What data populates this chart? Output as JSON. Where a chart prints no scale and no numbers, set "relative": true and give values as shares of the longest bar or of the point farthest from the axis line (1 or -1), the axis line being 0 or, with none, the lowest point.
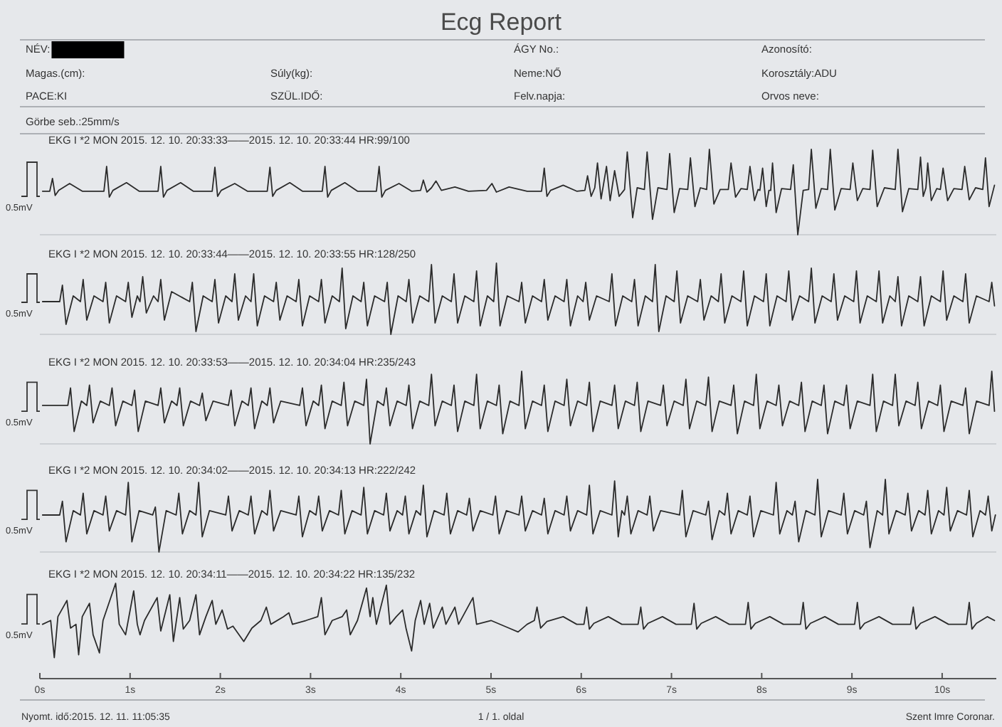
{
  "chart_data": [
    {
      "type": "other",
      "title": "Ecg Report",
      "annotations": [
        "NÉV:",
        "ÁGY No.:",
        "Azonosító:",
        "Magas.(cm):",
        "Súly(kg):",
        "Neme:NŐ",
        "Korosztály:ADU",
        "PACE:KI",
        "SZÜL.IDŐ:",
        "Felv.napja:",
        "Orvos neve:",
        "Görbe seb.:25mm/s"
      ]
    },
    {
      "type": "line",
      "title": "EKG I *2 MON 2015. 12. 10. 20:33:33——2015. 12. 10. 20:33:44 HR:99/100",
      "relative": true,
      "xlim": [
        0,
        10.6
      ],
      "tick_labels": false,
      "annotations": [
        "0.5mV"
      ],
      "color": "#2b2b2b",
      "x": [
        0.03,
        0.11,
        0.14,
        0.17,
        0.21,
        0.33,
        0.47,
        0.71,
        0.74,
        0.77,
        0.81,
        0.96,
        1.1,
        1.31,
        1.34,
        1.37,
        1.41,
        1.56,
        1.7,
        1.91,
        1.94,
        1.97,
        2.01,
        2.16,
        2.3,
        2.52,
        2.55,
        2.58,
        2.62,
        2.77,
        2.91,
        3.13,
        3.16,
        3.19,
        3.23,
        3.38,
        3.52,
        3.73,
        3.76,
        3.79,
        3.83,
        3.98,
        4.12,
        4.22,
        4.25,
        4.29,
        4.34,
        4.39,
        4.45,
        4.6,
        4.75,
        4.95,
        5.01,
        5.06,
        5.2,
        5.4,
        5.56,
        5.59,
        5.62,
        5.66,
        5.8,
        5.95,
        6.04,
        6.07,
        6.11,
        6.15,
        6.18,
        6.22,
        6.28,
        6.32,
        6.37,
        6.42,
        6.48,
        6.51,
        6.57,
        6.62,
        6.7,
        6.73,
        6.79,
        6.85,
        6.95,
        6.98,
        7.03,
        7.09,
        7.18,
        7.21,
        7.26,
        7.32,
        7.39,
        7.42,
        7.47,
        7.54,
        7.63,
        7.66,
        7.71,
        7.77,
        7.84,
        7.87,
        7.92,
        7.96,
        7.98,
        8.01,
        8.05,
        8.08,
        8.1,
        8.12,
        8.16,
        8.22,
        8.32,
        8.35,
        8.4,
        8.46,
        8.52,
        8.55,
        8.6,
        8.66,
        8.73,
        8.76,
        8.81,
        8.88,
        8.98,
        9.01,
        9.06,
        9.12,
        9.2,
        9.23,
        9.28,
        9.36,
        9.48,
        9.51,
        9.56,
        9.63,
        9.73,
        9.76,
        9.79,
        9.82,
        9.84,
        9.88,
        9.94,
        9.98,
        10.01,
        10.06,
        10.13,
        10.22,
        10.25,
        10.3,
        10.37,
        10.45,
        10.48,
        10.52,
        10.58
      ],
      "values": [
        0.51,
        0.51,
        0.66,
        0.46,
        0.52,
        0.6,
        0.51,
        0.51,
        0.8,
        0.44,
        0.52,
        0.61,
        0.51,
        0.51,
        0.8,
        0.44,
        0.52,
        0.61,
        0.51,
        0.51,
        0.79,
        0.45,
        0.52,
        0.6,
        0.51,
        0.51,
        0.79,
        0.45,
        0.52,
        0.61,
        0.51,
        0.51,
        0.8,
        0.44,
        0.52,
        0.61,
        0.51,
        0.51,
        0.8,
        0.44,
        0.52,
        0.6,
        0.51,
        0.52,
        0.64,
        0.5,
        0.55,
        0.63,
        0.52,
        0.56,
        0.51,
        0.52,
        0.6,
        0.5,
        0.56,
        0.51,
        0.51,
        0.78,
        0.45,
        0.52,
        0.58,
        0.51,
        0.52,
        0.69,
        0.45,
        0.55,
        0.84,
        0.42,
        0.8,
        0.4,
        0.75,
        0.45,
        0.53,
        0.97,
        0.2,
        0.55,
        0.53,
        0.97,
        0.18,
        0.55,
        0.53,
        0.95,
        0.26,
        0.54,
        0.53,
        0.9,
        0.33,
        0.55,
        0.53,
        1.0,
        0.36,
        0.53,
        0.53,
        0.84,
        0.44,
        0.54,
        0.53,
        0.8,
        0.4,
        0.53,
        0.52,
        0.78,
        0.33,
        0.52,
        0.52,
        0.84,
        0.26,
        0.54,
        0.53,
        0.82,
        0.0,
        0.52,
        0.53,
        1.0,
        0.31,
        0.54,
        0.53,
        1.0,
        0.29,
        0.54,
        0.53,
        0.84,
        0.4,
        0.54,
        0.53,
        0.99,
        0.33,
        0.55,
        0.53,
        1.0,
        0.27,
        0.54,
        0.53,
        0.91,
        0.45,
        0.55,
        0.84,
        0.4,
        0.54,
        0.53,
        0.78,
        0.4,
        0.54,
        0.53,
        0.8,
        0.41,
        0.55,
        0.53,
        0.9,
        0.33,
        0.58
      ]
    },
    {
      "type": "line",
      "title": "EKG I *2 MON 2015. 12. 10. 20:33:44——2015. 12. 10. 20:33:55 HR:128/250",
      "relative": true,
      "xlim": [
        0,
        10.6
      ],
      "tick_labels": false,
      "annotations": [
        "0.5mV"
      ],
      "color": "#2b2b2b",
      "x": [
        0.03,
        0.22,
        0.25,
        0.29,
        0.37,
        0.45,
        0.48,
        0.52,
        0.6,
        0.7,
        0.73,
        0.77,
        0.85,
        0.95,
        0.98,
        1.02,
        1.08,
        1.11,
        1.14,
        1.18,
        1.26,
        1.31,
        1.34,
        1.38,
        1.46,
        1.66,
        1.69,
        1.73,
        1.81,
        1.91,
        1.94,
        1.98,
        2.06,
        2.13,
        2.16,
        2.2,
        2.28,
        2.34,
        2.37,
        2.41,
        2.49,
        2.59,
        2.62,
        2.66,
        2.74,
        2.84,
        2.87,
        2.91,
        2.99,
        3.09,
        3.12,
        3.16,
        3.24,
        3.32,
        3.35,
        3.39,
        3.47,
        3.56,
        3.59,
        3.63,
        3.71,
        3.82,
        3.85,
        3.89,
        3.97,
        4.06,
        4.09,
        4.13,
        4.21,
        4.31,
        4.34,
        4.38,
        4.46,
        4.56,
        4.59,
        4.63,
        4.71,
        4.81,
        4.84,
        4.88,
        4.96,
        5.03,
        5.06,
        5.1,
        5.18,
        5.31,
        5.34,
        5.38,
        5.46,
        5.56,
        5.59,
        5.63,
        5.71,
        5.81,
        5.84,
        5.88,
        5.96,
        6.02,
        6.05,
        6.09,
        6.17,
        6.31,
        6.34,
        6.38,
        6.46,
        6.56,
        6.59,
        6.63,
        6.71,
        6.79,
        6.82,
        6.86,
        6.94,
        7.03,
        7.06,
        7.1,
        7.18,
        7.29,
        7.32,
        7.36,
        7.44,
        7.52,
        7.55,
        7.59,
        7.67,
        7.77,
        7.8,
        7.84,
        7.92,
        8.02,
        8.05,
        8.09,
        8.17,
        8.27,
        8.3,
        8.34,
        8.42,
        8.52,
        8.55,
        8.59,
        8.67,
        8.77,
        8.8,
        8.84,
        8.92,
        9.02,
        9.05,
        9.09,
        9.17,
        9.27,
        9.3,
        9.34,
        9.42,
        9.48,
        9.51,
        9.55,
        9.63,
        9.73,
        9.76,
        9.8,
        9.88,
        9.98,
        10.01,
        10.05,
        10.13,
        10.23,
        10.26,
        10.3,
        10.38,
        10.52,
        10.55,
        10.58
      ],
      "values": [
        0.46,
        0.46,
        0.69,
        0.14,
        0.54,
        0.46,
        0.77,
        0.2,
        0.54,
        0.46,
        0.73,
        0.16,
        0.54,
        0.46,
        0.73,
        0.24,
        0.54,
        0.46,
        0.81,
        0.3,
        0.54,
        0.46,
        0.77,
        0.2,
        0.6,
        0.46,
        0.73,
        0.04,
        0.54,
        0.46,
        0.77,
        0.16,
        0.54,
        0.46,
        0.85,
        0.2,
        0.54,
        0.46,
        0.85,
        0.12,
        0.54,
        0.46,
        0.73,
        0.2,
        0.54,
        0.46,
        0.77,
        0.12,
        0.54,
        0.46,
        0.77,
        0.16,
        0.54,
        0.46,
        0.93,
        0.08,
        0.54,
        0.46,
        0.73,
        0.12,
        0.54,
        0.46,
        0.73,
        0.0,
        0.54,
        0.46,
        0.77,
        0.16,
        0.54,
        0.46,
        0.98,
        0.16,
        0.54,
        0.46,
        0.85,
        0.16,
        0.54,
        0.46,
        0.89,
        0.12,
        0.54,
        0.46,
        1.0,
        0.12,
        0.54,
        0.46,
        0.73,
        0.16,
        0.54,
        0.46,
        0.77,
        0.2,
        0.54,
        0.46,
        0.77,
        0.12,
        0.54,
        0.46,
        0.73,
        0.2,
        0.54,
        0.46,
        0.85,
        0.12,
        0.54,
        0.46,
        0.77,
        0.12,
        0.54,
        0.46,
        0.98,
        0.04,
        0.54,
        0.46,
        0.89,
        0.16,
        0.54,
        0.46,
        0.77,
        0.2,
        0.54,
        0.46,
        0.85,
        0.16,
        0.54,
        0.46,
        0.89,
        0.12,
        0.54,
        0.46,
        0.85,
        0.12,
        0.54,
        0.46,
        0.89,
        0.2,
        0.54,
        0.46,
        0.93,
        0.16,
        0.54,
        0.46,
        0.85,
        0.2,
        0.54,
        0.46,
        0.89,
        0.16,
        0.54,
        0.46,
        0.89,
        0.16,
        0.54,
        0.46,
        0.81,
        0.12,
        0.54,
        0.46,
        0.81,
        0.12,
        0.54,
        0.46,
        0.89,
        0.2,
        0.54,
        0.46,
        0.85,
        0.16,
        0.54,
        0.46,
        0.73,
        0.4
      ]
    },
    {
      "type": "line",
      "title": "EKG I *2 MON 2015. 12. 10. 20:33:53——2015. 12. 10. 20:34:04 HR:235/243",
      "relative": true,
      "xlim": [
        0,
        10.6
      ],
      "tick_labels": false,
      "annotations": [
        "0.5mV"
      ],
      "color": "#2b2b2b",
      "x": [
        0.03,
        0.31,
        0.34,
        0.38,
        0.46,
        0.52,
        0.55,
        0.59,
        0.67,
        0.77,
        0.8,
        0.84,
        0.92,
        1.02,
        1.05,
        1.09,
        1.17,
        1.31,
        1.34,
        1.38,
        1.46,
        1.52,
        1.55,
        1.59,
        1.67,
        1.77,
        1.8,
        1.84,
        1.92,
        2.09,
        2.12,
        2.16,
        2.24,
        2.31,
        2.34,
        2.38,
        2.46,
        2.52,
        2.55,
        2.59,
        2.67,
        2.88,
        2.91,
        2.95,
        3.03,
        3.09,
        3.12,
        3.16,
        3.24,
        3.34,
        3.37,
        3.41,
        3.49,
        3.59,
        3.62,
        3.66,
        3.74,
        3.81,
        3.84,
        3.88,
        3.96,
        4.06,
        4.09,
        4.13,
        4.21,
        4.31,
        4.34,
        4.38,
        4.46,
        4.56,
        4.59,
        4.63,
        4.71,
        4.81,
        4.84,
        4.88,
        4.96,
        5.06,
        5.09,
        5.13,
        5.21,
        5.31,
        5.34,
        5.38,
        5.46,
        5.56,
        5.59,
        5.63,
        5.71,
        5.81,
        5.84,
        5.88,
        5.96,
        6.06,
        6.09,
        6.13,
        6.21,
        6.34,
        6.37,
        6.41,
        6.49,
        6.59,
        6.62,
        6.66,
        6.74,
        6.88,
        6.91,
        6.95,
        7.03,
        7.13,
        7.16,
        7.2,
        7.28,
        7.38,
        7.41,
        7.45,
        7.53,
        7.66,
        7.69,
        7.73,
        7.81,
        7.91,
        7.94,
        7.98,
        8.06,
        8.16,
        8.19,
        8.23,
        8.31,
        8.41,
        8.44,
        8.48,
        8.56,
        8.66,
        8.69,
        8.73,
        8.81,
        8.91,
        8.94,
        8.98,
        9.06,
        9.2,
        9.23,
        9.27,
        9.35,
        9.45,
        9.48,
        9.52,
        9.6,
        9.7,
        9.73,
        9.77,
        9.85,
        9.95,
        9.98,
        10.02,
        10.1,
        10.23,
        10.26,
        10.3,
        10.38,
        10.52,
        10.55,
        10.58
      ],
      "values": [
        0.53,
        0.53,
        0.77,
        0.17,
        0.59,
        0.53,
        0.81,
        0.29,
        0.59,
        0.53,
        0.77,
        0.25,
        0.59,
        0.53,
        0.74,
        0.17,
        0.59,
        0.53,
        0.77,
        0.29,
        0.59,
        0.53,
        0.77,
        0.25,
        0.59,
        0.53,
        0.7,
        0.32,
        0.59,
        0.53,
        0.74,
        0.25,
        0.59,
        0.53,
        0.77,
        0.21,
        0.59,
        0.53,
        0.77,
        0.29,
        0.59,
        0.53,
        0.77,
        0.25,
        0.59,
        0.53,
        0.81,
        0.21,
        0.59,
        0.53,
        0.85,
        0.25,
        0.59,
        0.53,
        0.89,
        0.0,
        0.59,
        0.53,
        0.77,
        0.25,
        0.59,
        0.53,
        0.81,
        0.21,
        0.59,
        0.53,
        0.96,
        0.25,
        0.59,
        0.53,
        0.81,
        0.17,
        0.59,
        0.53,
        0.96,
        0.21,
        0.59,
        0.53,
        0.81,
        0.14,
        0.59,
        0.53,
        1.0,
        0.21,
        0.59,
        0.53,
        0.81,
        0.17,
        0.59,
        0.53,
        0.89,
        0.25,
        0.59,
        0.53,
        0.85,
        0.17,
        0.59,
        0.53,
        0.81,
        0.21,
        0.59,
        0.53,
        0.85,
        0.17,
        0.59,
        0.53,
        0.81,
        0.25,
        0.59,
        0.53,
        0.89,
        0.21,
        0.59,
        0.53,
        0.92,
        0.17,
        0.59,
        0.53,
        0.81,
        0.14,
        0.59,
        0.53,
        0.96,
        0.21,
        0.59,
        0.53,
        0.81,
        0.25,
        0.59,
        0.53,
        0.85,
        0.17,
        0.59,
        0.53,
        0.81,
        0.14,
        0.59,
        0.53,
        0.81,
        0.21,
        0.59,
        0.53,
        0.96,
        0.17,
        0.59,
        0.53,
        0.96,
        0.25,
        0.59,
        0.53,
        0.85,
        0.21,
        0.59,
        0.53,
        0.81,
        0.17,
        0.59,
        0.53,
        0.77,
        0.14,
        0.59,
        0.53,
        1.0,
        0.45
      ]
    },
    {
      "type": "line",
      "title": "EKG I *2 MON 2015. 12. 10. 20:34:02——2015. 12. 10. 20:34:13 HR:222/242",
      "relative": true,
      "xlim": [
        0,
        10.6
      ],
      "tick_labels": false,
      "annotations": [
        "0.5mV"
      ],
      "color": "#2b2b2b",
      "x": [
        0.03,
        0.22,
        0.25,
        0.29,
        0.37,
        0.45,
        0.48,
        0.52,
        0.6,
        0.7,
        0.73,
        0.77,
        0.85,
        0.95,
        0.98,
        1.02,
        1.1,
        1.25,
        1.28,
        1.32,
        1.4,
        1.51,
        1.54,
        1.58,
        1.66,
        1.73,
        1.76,
        1.8,
        1.88,
        2.06,
        2.09,
        2.13,
        2.21,
        2.31,
        2.34,
        2.38,
        2.46,
        2.52,
        2.55,
        2.59,
        2.67,
        2.84,
        2.87,
        2.91,
        2.99,
        3.06,
        3.09,
        3.13,
        3.21,
        3.31,
        3.34,
        3.38,
        3.46,
        3.56,
        3.59,
        3.63,
        3.71,
        3.81,
        3.84,
        3.88,
        3.96,
        4.02,
        4.05,
        4.09,
        4.17,
        4.22,
        4.25,
        4.29,
        4.37,
        4.48,
        4.51,
        4.55,
        4.63,
        4.73,
        4.76,
        4.8,
        4.88,
        5.02,
        5.05,
        5.09,
        5.17,
        5.31,
        5.34,
        5.38,
        5.46,
        5.56,
        5.59,
        5.63,
        5.71,
        5.81,
        5.84,
        5.88,
        5.96,
        6.06,
        6.09,
        6.13,
        6.21,
        6.34,
        6.37,
        6.41,
        6.45,
        6.48,
        6.51,
        6.55,
        6.63,
        6.73,
        6.76,
        6.8,
        6.88,
        7.09,
        7.12,
        7.16,
        7.24,
        7.38,
        7.41,
        7.45,
        7.53,
        7.59,
        7.62,
        7.66,
        7.74,
        7.84,
        7.87,
        7.91,
        7.99,
        8.13,
        8.16,
        8.2,
        8.28,
        8.34,
        8.37,
        8.41,
        8.49,
        8.59,
        8.62,
        8.66,
        8.74,
        8.88,
        8.91,
        8.95,
        9.03,
        9.13,
        9.16,
        9.2,
        9.28,
        9.34,
        9.37,
        9.41,
        9.49,
        9.59,
        9.62,
        9.66,
        9.74,
        9.81,
        9.84,
        9.88,
        9.96,
        10.02,
        10.05,
        10.09,
        10.17,
        10.27,
        10.3,
        10.34,
        10.42,
        10.48,
        10.51,
        10.55,
        10.59
      ],
      "values": [
        0.51,
        0.51,
        0.7,
        0.14,
        0.57,
        0.51,
        0.81,
        0.25,
        0.57,
        0.51,
        0.77,
        0.29,
        0.57,
        0.51,
        0.96,
        0.14,
        0.57,
        0.51,
        0.62,
        0.0,
        0.57,
        0.51,
        0.81,
        0.25,
        0.57,
        0.51,
        0.96,
        0.21,
        0.57,
        0.51,
        0.77,
        0.29,
        0.57,
        0.51,
        0.77,
        0.25,
        0.57,
        0.51,
        0.85,
        0.29,
        0.57,
        0.51,
        0.77,
        0.21,
        0.57,
        0.51,
        0.77,
        0.29,
        0.57,
        0.51,
        0.85,
        0.25,
        0.57,
        0.51,
        0.89,
        0.25,
        0.57,
        0.51,
        0.81,
        0.29,
        0.57,
        0.51,
        0.77,
        0.25,
        0.57,
        0.51,
        0.92,
        0.21,
        0.57,
        0.51,
        0.81,
        0.25,
        0.57,
        0.51,
        0.74,
        0.29,
        0.57,
        0.51,
        0.77,
        0.25,
        0.57,
        0.51,
        0.77,
        0.29,
        0.57,
        0.51,
        0.74,
        0.25,
        0.57,
        0.51,
        0.77,
        0.29,
        0.57,
        0.51,
        0.92,
        0.25,
        0.57,
        0.51,
        0.98,
        0.21,
        0.57,
        0.51,
        0.77,
        0.25,
        0.57,
        0.51,
        0.77,
        0.29,
        0.57,
        0.51,
        0.85,
        0.21,
        0.57,
        0.51,
        0.7,
        0.17,
        0.57,
        0.51,
        0.81,
        0.25,
        0.57,
        0.51,
        0.77,
        0.21,
        0.57,
        0.51,
        0.96,
        0.25,
        0.57,
        0.51,
        0.7,
        0.14,
        0.57,
        0.51,
        1.0,
        0.21,
        0.57,
        0.51,
        0.81,
        0.25,
        0.57,
        0.51,
        0.7,
        0.06,
        0.57,
        0.51,
        1.0,
        0.25,
        0.57,
        0.51,
        0.81,
        0.29,
        0.57,
        0.51,
        0.85,
        0.25,
        0.57,
        0.51,
        0.89,
        0.29,
        0.57,
        0.51,
        0.85,
        0.21,
        0.57,
        0.51,
        0.77,
        0.29,
        0.51
      ]
    },
    {
      "type": "line",
      "title": "EKG I *2 MON 2015. 12. 10. 20:34:11——2015. 12. 10. 20:34:22 HR:135/232",
      "relative": true,
      "xlim": [
        0,
        10.6
      ],
      "tick_labels": "x",
      "xticks": [
        {
          "value": 0,
          "label": "0s"
        },
        {
          "value": 1,
          "label": "1s"
        },
        {
          "value": 2,
          "label": "2s"
        },
        {
          "value": 3,
          "label": "3s"
        },
        {
          "value": 4,
          "label": "4s"
        },
        {
          "value": 5,
          "label": "5s"
        },
        {
          "value": 6,
          "label": "6s"
        },
        {
          "value": 7,
          "label": "7s"
        },
        {
          "value": 8,
          "label": "8s"
        },
        {
          "value": 9,
          "label": "9s"
        },
        {
          "value": 10,
          "label": "10s"
        }
      ],
      "annotations": [
        "0.5mV",
        "Nyomt. idő:2015. 12. 11. 11:05:35",
        "1 / 1. oldal",
        "Szent Imre Coronar."
      ],
      "color": "#2b2b2b",
      "x": [
        0.03,
        0.12,
        0.16,
        0.2,
        0.3,
        0.34,
        0.4,
        0.43,
        0.47,
        0.55,
        0.59,
        0.66,
        0.7,
        0.84,
        0.88,
        0.95,
        1.04,
        1.08,
        1.11,
        1.16,
        1.3,
        1.34,
        1.44,
        1.48,
        1.55,
        1.59,
        1.66,
        1.73,
        1.77,
        1.84,
        1.91,
        1.95,
        2.02,
        2.08,
        2.14,
        2.26,
        2.35,
        2.45,
        2.51,
        2.56,
        2.7,
        2.76,
        2.8,
        2.95,
        3.08,
        3.12,
        3.16,
        3.24,
        3.35,
        3.4,
        3.44,
        3.52,
        3.62,
        3.66,
        3.69,
        3.73,
        3.84,
        3.88,
        3.95,
        4.02,
        4.06,
        4.12,
        4.16,
        4.22,
        4.26,
        4.32,
        4.36,
        4.46,
        4.5,
        4.6,
        4.64,
        4.8,
        4.84,
        5.0,
        5.2,
        5.3,
        5.4,
        5.48,
        5.51,
        5.55,
        5.62,
        5.8,
        5.95,
        6.03,
        6.06,
        6.09,
        6.14,
        6.3,
        6.45,
        6.63,
        6.66,
        6.69,
        6.74,
        6.9,
        7.05,
        7.22,
        7.25,
        7.28,
        7.33,
        7.49,
        7.64,
        7.82,
        7.85,
        7.88,
        7.93,
        8.09,
        8.24,
        8.43,
        8.46,
        8.49,
        8.54,
        8.7,
        8.85,
        9.03,
        9.06,
        9.09,
        9.14,
        9.3,
        9.45,
        9.65,
        9.68,
        9.71,
        9.76,
        9.92,
        10.07,
        10.27,
        10.3,
        10.33,
        10.38,
        10.5,
        10.58
      ],
      "values": [
        0.57,
        0.61,
        0.22,
        0.65,
        0.82,
        0.53,
        0.57,
        0.25,
        0.65,
        0.79,
        0.46,
        0.27,
        0.61,
        1.0,
        0.57,
        0.46,
        0.92,
        0.57,
        0.46,
        0.61,
        0.85,
        0.5,
        0.88,
        0.39,
        0.85,
        0.52,
        0.61,
        0.88,
        0.46,
        0.65,
        0.82,
        0.57,
        0.72,
        0.52,
        0.55,
        0.39,
        0.53,
        0.61,
        0.75,
        0.57,
        0.65,
        0.69,
        0.57,
        0.61,
        0.65,
        0.85,
        0.46,
        0.61,
        0.65,
        0.72,
        0.46,
        0.61,
        0.95,
        0.65,
        0.85,
        0.57,
        0.98,
        0.57,
        0.65,
        0.72,
        0.52,
        0.29,
        0.61,
        0.82,
        0.57,
        0.79,
        0.53,
        0.75,
        0.57,
        0.75,
        0.57,
        0.85,
        0.57,
        0.61,
        0.53,
        0.49,
        0.57,
        0.61,
        0.75,
        0.53,
        0.6,
        0.65,
        0.57,
        0.57,
        0.75,
        0.52,
        0.58,
        0.65,
        0.57,
        0.57,
        0.75,
        0.52,
        0.58,
        0.65,
        0.57,
        0.57,
        0.79,
        0.52,
        0.58,
        0.65,
        0.57,
        0.57,
        0.8,
        0.52,
        0.58,
        0.65,
        0.57,
        0.57,
        0.8,
        0.52,
        0.58,
        0.65,
        0.57,
        0.57,
        0.8,
        0.52,
        0.58,
        0.65,
        0.57,
        0.57,
        0.75,
        0.52,
        0.58,
        0.65,
        0.57,
        0.57,
        0.8,
        0.52,
        0.58,
        0.65,
        0.61
      ]
    }
  ]
}
